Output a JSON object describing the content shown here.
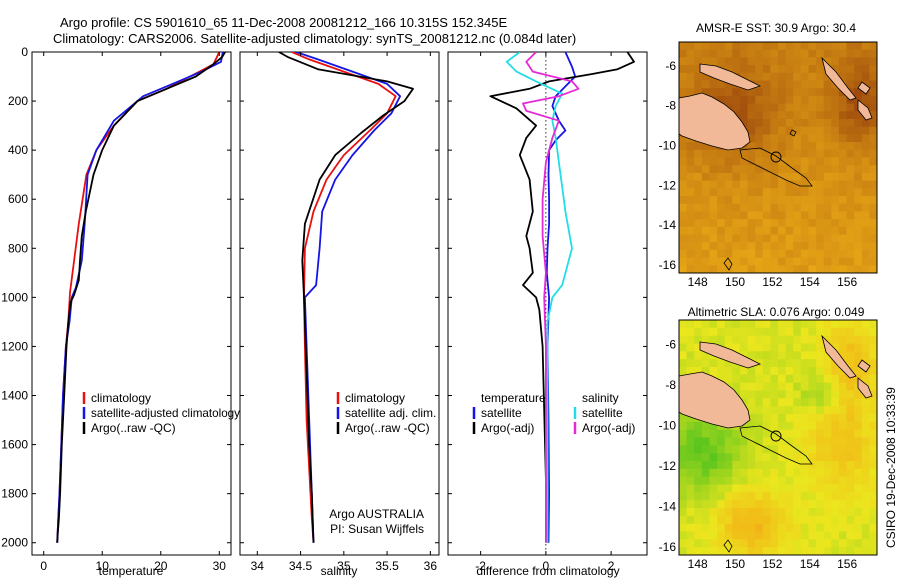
{
  "header": {
    "line1": "Argo profile: CS 5901610_65 11-Dec-2008 20081212_166 10.315S 152.345E",
    "line2": "Climatology: CARS2006. Satellite-adjusted climatology: synTS_20081212.nc (0.084d later)"
  },
  "side_label": "CSIRO 19-Dec-2008 10:33:39",
  "colors": {
    "climatology": "#e81010",
    "satellite": "#1515e6",
    "argo": "#000000",
    "satellite_sal": "#22dde6",
    "argo_sal": "#e629d6",
    "land": "#f2b998"
  },
  "chart_data": [
    {
      "type": "line",
      "xlabel": "temperature",
      "ylabel": "",
      "xlim": [
        -2,
        32
      ],
      "ylim": [
        2050,
        0
      ],
      "y_reversed": true,
      "xticks": [
        0,
        10,
        20,
        30
      ],
      "yticks": [
        0,
        200,
        400,
        600,
        800,
        1000,
        1200,
        1400,
        1600,
        1800,
        2000
      ],
      "legend": {
        "placement": "lower-right",
        "entries": [
          "climatology",
          "satellite-adjusted climatology",
          "Argo(..raw -QC)"
        ]
      },
      "series": [
        {
          "name": "climatology",
          "color": "#e81010",
          "x": [
            30,
            29,
            25,
            21,
            16,
            12,
            9,
            7.3,
            6,
            5.2,
            4.5,
            4.2,
            3.8,
            3.3,
            3.0,
            2.7,
            2.5,
            2.3
          ],
          "y": [
            0,
            50,
            100,
            150,
            200,
            300,
            400,
            500,
            700,
            850,
            980,
            1100,
            1200,
            1400,
            1600,
            1800,
            1900,
            2000
          ]
        },
        {
          "name": "satellite-adjusted climatology",
          "color": "#1515e6",
          "x": [
            30.6,
            30.3,
            27,
            22,
            17,
            12,
            9,
            7.5,
            7,
            6.5,
            5.5,
            4.8,
            4.4,
            3.8,
            3.3,
            3.0,
            2.7,
            2.5,
            2.3
          ],
          "y": [
            0,
            40,
            80,
            130,
            180,
            280,
            400,
            500,
            700,
            850,
            960,
            1000,
            1100,
            1200,
            1400,
            1600,
            1800,
            1900,
            2000
          ]
        },
        {
          "name": "Argo(..raw -QC)",
          "color": "#000000",
          "x": [
            31,
            30.5,
            29,
            26,
            21,
            16,
            12,
            10,
            8.5,
            7.2,
            6.5,
            6.2,
            6.0,
            5.2,
            4.6,
            4.2,
            3.9,
            3.5,
            3.1,
            2.8,
            2.6,
            2.4,
            2.3
          ],
          "y": [
            0,
            20,
            50,
            100,
            150,
            200,
            300,
            400,
            500,
            650,
            750,
            850,
            930,
            990,
            1020,
            1100,
            1200,
            1400,
            1600,
            1800,
            1900,
            1960,
            2000
          ]
        }
      ]
    },
    {
      "type": "line",
      "xlabel": "salinity",
      "ylabel": "",
      "xlim": [
        33.8,
        36.1
      ],
      "ylim": [
        2050,
        0
      ],
      "y_reversed": true,
      "xticks": [
        34,
        34.5,
        35,
        35.5,
        36
      ],
      "legend": {
        "placement": "lower-right",
        "entries": [
          "climatology",
          "satellite adj. clim.",
          "Argo(..raw -QC)"
        ]
      },
      "annotation": [
        "Argo AUSTRALIA",
        "PI: Susan Wijffels"
      ],
      "series": [
        {
          "name": "climatology",
          "color": "#e81010",
          "x": [
            34.4,
            34.6,
            35.0,
            35.4,
            35.6,
            35.5,
            35.3,
            35.0,
            34.8,
            34.65,
            34.55,
            34.54,
            34.55,
            34.57,
            34.6,
            34.63,
            34.65
          ],
          "y": [
            0,
            30,
            80,
            130,
            180,
            250,
            320,
            420,
            520,
            650,
            800,
            1000,
            1200,
            1500,
            1700,
            1900,
            2000
          ]
        },
        {
          "name": "satellite adj. clim.",
          "color": "#1515e6",
          "x": [
            34.45,
            34.7,
            35.1,
            35.5,
            35.65,
            35.55,
            35.35,
            35.1,
            34.9,
            34.75,
            34.72,
            34.68,
            34.55,
            34.57,
            34.6,
            34.63,
            34.65
          ],
          "y": [
            0,
            30,
            80,
            130,
            180,
            250,
            320,
            420,
            520,
            650,
            800,
            950,
            1000,
            1200,
            1500,
            1800,
            2000
          ]
        },
        {
          "name": "Argo(..raw -QC)",
          "color": "#000000",
          "x": [
            34.25,
            34.35,
            34.7,
            35.5,
            35.8,
            35.7,
            35.45,
            35.2,
            34.9,
            34.72,
            34.55,
            34.52,
            34.54,
            34.55,
            34.57,
            34.6,
            34.63,
            34.65
          ],
          "y": [
            0,
            20,
            70,
            120,
            150,
            200,
            260,
            330,
            420,
            520,
            700,
            850,
            1000,
            1100,
            1300,
            1600,
            1800,
            2000
          ]
        }
      ]
    },
    {
      "type": "line",
      "xlabel": "difference from climatology",
      "ylabel": "",
      "xlim": [
        -3,
        3.1
      ],
      "ylim": [
        2050,
        0
      ],
      "y_reversed": true,
      "xticks": [
        -2,
        0,
        2
      ],
      "reference_line": 0,
      "legend": {
        "placement": "lower-center",
        "entries": [
          "temperature",
          "satellite",
          "Argo(-adj)",
          "salinity",
          "satellite",
          "Argo(-adj)"
        ]
      },
      "series": [
        {
          "name": "satellite",
          "variable": "temperature",
          "color": "#1515e6",
          "x": [
            0.6,
            0.8,
            0.9,
            0.6,
            0.3,
            0.2,
            0.4,
            0.6,
            0.3,
            0.1,
            0.08,
            0.1,
            0.1,
            0.05,
            0.03,
            0.1,
            0.05,
            0.08,
            0.1,
            0.08
          ],
          "y": [
            0,
            60,
            100,
            140,
            180,
            220,
            280,
            320,
            360,
            400,
            500,
            600,
            700,
            800,
            900,
            1000,
            1200,
            1500,
            1800,
            2000
          ]
        },
        {
          "name": "Argo(-adj)",
          "variable": "temperature",
          "color": "#000000",
          "x": [
            2.5,
            2.7,
            2.2,
            1.4,
            0.1,
            -0.5,
            -1.7,
            -0.9,
            -0.3,
            -0.6,
            -0.8,
            -0.5,
            -0.4,
            -0.6,
            -0.5,
            -0.4,
            -0.7,
            -0.3,
            -0.2,
            -0.1,
            0.05
          ],
          "y": [
            0,
            40,
            70,
            90,
            120,
            150,
            180,
            230,
            300,
            350,
            420,
            520,
            650,
            750,
            800,
            900,
            950,
            1000,
            1050,
            1200,
            2000
          ]
        },
        {
          "name": "satellite",
          "variable": "salinity",
          "color": "#22dde6",
          "x": [
            -0.8,
            -1.2,
            -0.9,
            -0.3,
            0.5,
            0.3,
            0.2,
            0.3,
            0.4,
            0.5,
            0.6,
            0.8,
            0.5,
            0.2,
            0.05,
            0.05,
            0.05
          ],
          "y": [
            0,
            40,
            80,
            120,
            170,
            220,
            280,
            350,
            450,
            550,
            650,
            800,
            950,
            1000,
            1100,
            1500,
            2000
          ]
        },
        {
          "name": "Argo(-adj)",
          "variable": "salinity",
          "color": "#e629d6",
          "x": [
            -0.3,
            -0.6,
            -0.4,
            0.8,
            1.0,
            0.4,
            -0.7,
            -0.6,
            0.4,
            0.2,
            0.0,
            -0.1,
            -0.1,
            0.0,
            -0.05,
            0.0,
            0.0
          ],
          "y": [
            0,
            40,
            80,
            120,
            150,
            180,
            210,
            240,
            280,
            350,
            450,
            600,
            750,
            900,
            1000,
            1200,
            2000
          ]
        }
      ]
    },
    {
      "type": "heatmap",
      "title": "AMSR-E SST: 30.9 Argo: 30.4",
      "xticks": [
        148,
        150,
        152,
        154,
        156
      ],
      "yticks": [
        -6,
        -8,
        -10,
        -12,
        -14,
        -16
      ],
      "xlim": [
        147,
        157.6
      ],
      "ylim": [
        -16.4,
        -4.8
      ],
      "argo_position": {
        "lon": 152.345,
        "lat": -10.315
      },
      "colormap": "orange"
    },
    {
      "type": "heatmap",
      "title": "Altimetric SLA: 0.076 Argo: 0.049",
      "xticks": [
        148,
        150,
        152,
        154,
        156
      ],
      "yticks": [
        -6,
        -8,
        -10,
        -12,
        -14,
        -16
      ],
      "xlim": [
        147,
        157.6
      ],
      "ylim": [
        -16.4,
        -4.8
      ],
      "argo_position": {
        "lon": 152.345,
        "lat": -10.315
      },
      "colormap": "green-yellow"
    }
  ]
}
